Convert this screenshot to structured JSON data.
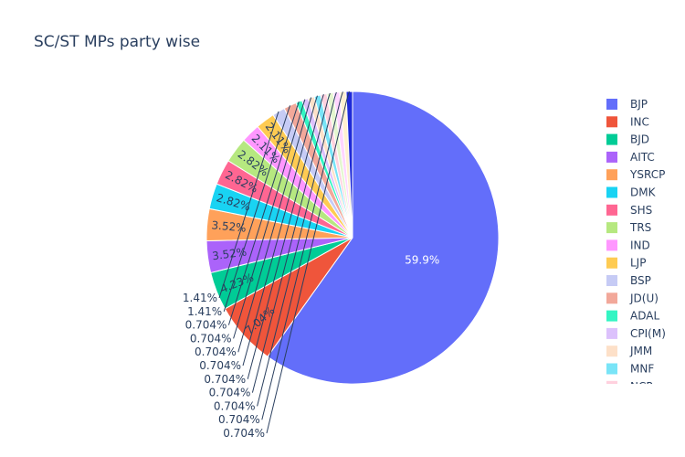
{
  "chart_data": {
    "type": "pie",
    "title": "SC/ST MPs party wise",
    "legend_position": "right",
    "slices": [
      {
        "label": "BJP",
        "percent": 59.9,
        "color": "#636efa"
      },
      {
        "label": "INC",
        "percent": 7.04,
        "color": "#EF553B"
      },
      {
        "label": "BJD",
        "percent": 4.23,
        "color": "#00cc96"
      },
      {
        "label": "AITC",
        "percent": 3.52,
        "color": "#ab63fa"
      },
      {
        "label": "YSRCP",
        "percent": 3.52,
        "color": "#FFA15A"
      },
      {
        "label": "DMK",
        "percent": 2.82,
        "color": "#19d3f3"
      },
      {
        "label": "SHS",
        "percent": 2.82,
        "color": "#FF6692"
      },
      {
        "label": "TRS",
        "percent": 2.82,
        "color": "#B6E880"
      },
      {
        "label": "IND",
        "percent": 2.11,
        "color": "#FF97FF"
      },
      {
        "label": "LJP",
        "percent": 2.11,
        "color": "#FECB52"
      },
      {
        "label": "BSP",
        "percent": 1.41,
        "color": "#c6cbf5"
      },
      {
        "label": "JD(U)",
        "percent": 1.41,
        "color": "#f2a89a"
      },
      {
        "label": "ADAL",
        "percent": 0.704,
        "color": "#33f5c3"
      },
      {
        "label": "CPI(M)",
        "percent": 0.704,
        "color": "#dcc1fc"
      },
      {
        "label": "JMM",
        "percent": 0.704,
        "color": "#fde0c8"
      },
      {
        "label": "MNF",
        "percent": 0.704,
        "color": "#79e4f7"
      },
      {
        "label": "NCP",
        "percent": 0.704,
        "color": "#ffd1de"
      },
      {
        "label": "",
        "percent": 0.704,
        "color": "#e4f6cf"
      },
      {
        "label": "",
        "percent": 0.704,
        "color": "#ffd5ff"
      },
      {
        "label": "",
        "percent": 0.704,
        "color": "#fff0cf"
      },
      {
        "label": "",
        "percent": 0.704,
        "color": "#1f2ad8"
      }
    ],
    "display_labels": [
      "59.9%",
      "7.04%",
      "4.23%",
      "3.52%",
      "3.52%",
      "2.82%",
      "2.82%",
      "2.82%",
      "2.11%",
      "2.11%",
      "1.41%",
      "1.41%",
      "0.704%",
      "0.704%",
      "0.704%",
      "0.704%",
      "0.704%",
      "0.704%",
      "0.704%",
      "0.704%",
      "0.704%"
    ],
    "legend_visible": [
      "BJP",
      "INC",
      "BJD",
      "AITC",
      "YSRCP",
      "DMK",
      "SHS",
      "TRS",
      "IND",
      "LJP",
      "BSP",
      "JD(U)",
      "ADAL",
      "CPI(M)",
      "JMM",
      "MNF",
      "NCP"
    ]
  }
}
